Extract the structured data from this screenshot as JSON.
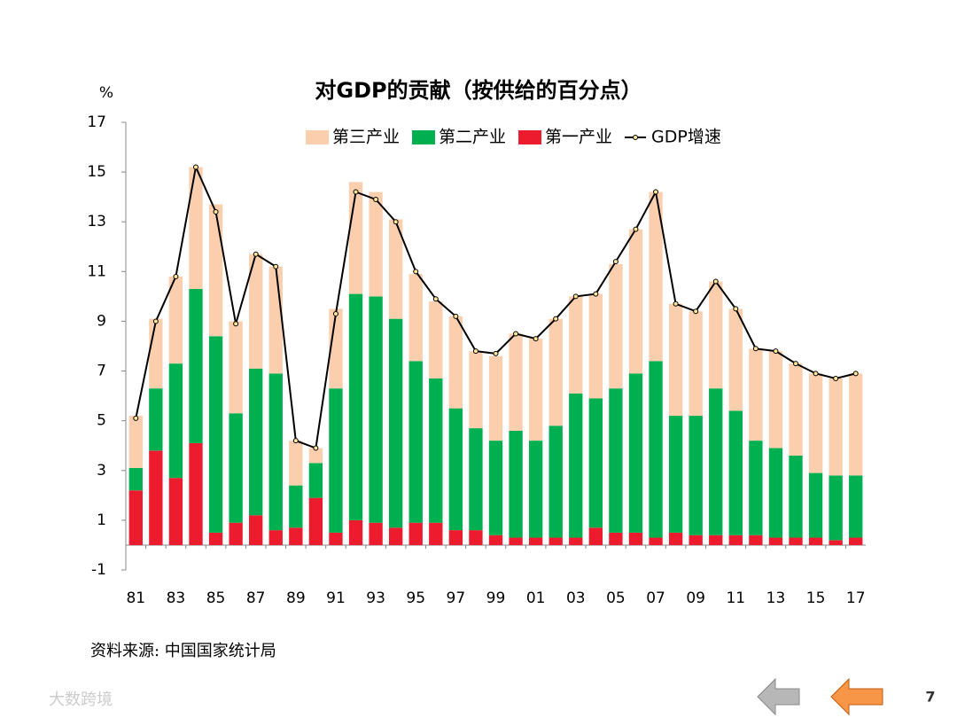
{
  "chart_data": {
    "type": "bar",
    "stacked": true,
    "title": "对GDP的贡献（按供给的百分点）",
    "y_unit": "%",
    "categories": [
      "81",
      null,
      "83",
      null,
      "85",
      null,
      "87",
      null,
      "89",
      null,
      "91",
      null,
      "93",
      null,
      "95",
      null,
      "97",
      null,
      "99",
      null,
      "01",
      null,
      "03",
      null,
      "05",
      null,
      "07",
      null,
      "09",
      null,
      "11",
      null,
      "13",
      null,
      "15",
      null,
      "17"
    ],
    "series": [
      {
        "name": "第三产业",
        "color": "#fbcfae",
        "values": [
          2.1,
          2.8,
          3.5,
          4.9,
          5.3,
          3.7,
          4.6,
          4.3,
          1.8,
          0.6,
          3.2,
          4.5,
          4.2,
          4.0,
          3.5,
          3.1,
          3.7,
          3.1,
          3.4,
          3.9,
          4.1,
          4.3,
          3.9,
          4.2,
          5.0,
          5.8,
          6.8,
          4.5,
          4.2,
          4.3,
          4.1,
          3.7,
          3.9,
          3.7,
          4.0,
          3.9,
          4.1
        ]
      },
      {
        "name": "第二产业",
        "color": "#00b050",
        "values": [
          0.9,
          2.5,
          4.6,
          6.2,
          7.9,
          4.4,
          5.9,
          6.3,
          1.7,
          1.4,
          5.8,
          9.1,
          9.1,
          8.4,
          6.5,
          5.8,
          4.9,
          4.1,
          3.8,
          4.3,
          3.9,
          4.5,
          5.8,
          5.2,
          5.8,
          6.4,
          7.1,
          4.7,
          4.8,
          5.9,
          5.0,
          3.8,
          3.6,
          3.3,
          2.6,
          2.6,
          2.5
        ]
      },
      {
        "name": "第一产业",
        "color": "#ec1c2e",
        "values": [
          2.2,
          3.8,
          2.7,
          4.1,
          0.5,
          0.9,
          1.2,
          0.6,
          0.7,
          1.9,
          0.5,
          1.0,
          0.9,
          0.7,
          0.9,
          0.9,
          0.6,
          0.6,
          0.4,
          0.3,
          0.3,
          0.3,
          0.3,
          0.7,
          0.5,
          0.5,
          0.3,
          0.5,
          0.4,
          0.4,
          0.4,
          0.4,
          0.3,
          0.3,
          0.3,
          0.2,
          0.3
        ]
      },
      {
        "name": "GDP增速",
        "type": "line",
        "color": "#000000",
        "values": [
          5.1,
          9.0,
          10.8,
          15.2,
          13.4,
          8.9,
          11.7,
          11.2,
          4.2,
          3.9,
          9.3,
          14.2,
          13.9,
          13.0,
          11.0,
          9.9,
          9.2,
          7.8,
          7.7,
          8.5,
          8.3,
          9.1,
          10.0,
          10.1,
          11.4,
          12.7,
          14.2,
          9.7,
          9.4,
          10.6,
          9.5,
          7.9,
          7.8,
          7.3,
          6.9,
          6.7,
          6.9
        ]
      }
    ],
    "ylim": [
      -1,
      17
    ],
    "yticks": [
      -1,
      1,
      3,
      5,
      7,
      9,
      11,
      13,
      15,
      17
    ],
    "source": "资料来源: 中国国家统计局"
  },
  "page_number": "7",
  "watermark": "大数跨境"
}
